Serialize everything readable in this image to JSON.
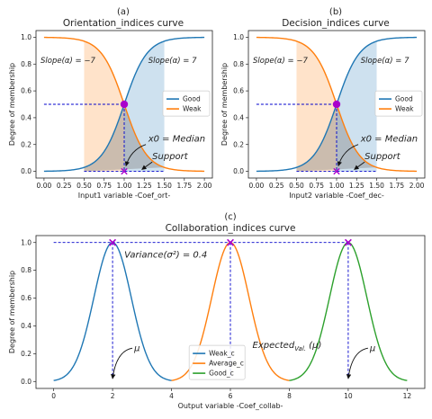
{
  "charts": [
    {
      "panel_label": "(a)",
      "title": "Orientation_indices curve",
      "xlabel": "Input1 variable -Coef_ort-",
      "ylabel": "Degree of membership",
      "slope_left": "Slope(α) = −7",
      "slope_right": "Slope(α) = 7",
      "median_label": "x0 = Median",
      "support_label": "Support",
      "legend": [
        "Good",
        "Weak"
      ]
    },
    {
      "panel_label": "(b)",
      "title": "Decision_indices curve",
      "xlabel": "Input2 variable -Coef_dec-",
      "ylabel": "Degree of membership",
      "slope_left": "Slope(α) = −7",
      "slope_right": "Slope(α) = 7",
      "median_label": "x0 = Median",
      "support_label": "Support",
      "legend": [
        "Good",
        "Weak"
      ]
    },
    {
      "panel_label": "(c)",
      "title": "Collaboration_indices curve",
      "xlabel": "Output variable -Coef_collab-",
      "ylabel": "Degree of membership",
      "variance_label": "Variance(σ²) = 0.4",
      "expected_label": "Expected",
      "expected_sub": "Val.",
      "expected_tail": "(μ)",
      "mu_label": "μ",
      "legend": [
        "Weak_c",
        "Average_c",
        "Good_c"
      ]
    }
  ],
  "colors": {
    "good": "#1f77b4",
    "weak": "#ff7f0e",
    "green": "#2ca02c",
    "marker": "#aa00cc",
    "dash": "#0000cc"
  },
  "chart_data": [
    {
      "type": "line",
      "x_range": [
        0,
        2
      ],
      "ylim": [
        0,
        1
      ],
      "x_ticks": [
        0.0,
        0.25,
        0.5,
        0.75,
        1.0,
        1.25,
        1.5,
        1.75,
        2.0
      ],
      "y_ticks": [
        0.0,
        0.2,
        0.4,
        0.6,
        0.8,
        1.0
      ],
      "series": [
        {
          "name": "Good",
          "function": "sigmoid",
          "center": 1.0,
          "slope": 7
        },
        {
          "name": "Weak",
          "function": "sigmoid",
          "center": 1.0,
          "slope": -7
        }
      ],
      "shaded": [
        {
          "from": 0.5,
          "to": 1.0,
          "color": "weak"
        },
        {
          "from": 1.0,
          "to": 1.5,
          "color": "good"
        }
      ],
      "crossover": {
        "x": 1.0,
        "y": 0.5
      },
      "support": [
        0.5,
        1.5
      ],
      "legend_position": "center-right"
    },
    {
      "type": "line",
      "x_range": [
        0,
        2
      ],
      "ylim": [
        0,
        1
      ],
      "x_ticks": [
        0.0,
        0.25,
        0.5,
        0.75,
        1.0,
        1.25,
        1.5,
        1.75,
        2.0
      ],
      "y_ticks": [
        0.0,
        0.2,
        0.4,
        0.6,
        0.8,
        1.0
      ],
      "series": [
        {
          "name": "Good",
          "function": "sigmoid",
          "center": 1.0,
          "slope": 7
        },
        {
          "name": "Weak",
          "function": "sigmoid",
          "center": 1.0,
          "slope": -7
        }
      ],
      "shaded": [
        {
          "from": 0.5,
          "to": 1.0,
          "color": "weak"
        },
        {
          "from": 1.0,
          "to": 1.5,
          "color": "good"
        }
      ],
      "crossover": {
        "x": 1.0,
        "y": 0.5
      },
      "support": [
        0.5,
        1.5
      ],
      "legend_position": "center-right"
    },
    {
      "type": "line",
      "x_range": [
        0,
        12
      ],
      "ylim": [
        0,
        1
      ],
      "x_ticks": [
        0,
        2,
        4,
        6,
        8,
        10,
        12
      ],
      "y_ticks": [
        0.0,
        0.2,
        0.4,
        0.6,
        0.8,
        1.0
      ],
      "variance": 0.4,
      "series": [
        {
          "name": "Weak_c",
          "function": "gaussian",
          "mean": 2,
          "range": [
            0,
            4
          ],
          "color": "good"
        },
        {
          "name": "Average_c",
          "function": "gaussian",
          "mean": 6,
          "range": [
            4,
            8
          ],
          "color": "weak"
        },
        {
          "name": "Good_c",
          "function": "gaussian",
          "mean": 10,
          "range": [
            8,
            12
          ],
          "color": "green"
        }
      ],
      "peaks": [
        2,
        6,
        10
      ],
      "legend_position": "bottom-center"
    }
  ]
}
